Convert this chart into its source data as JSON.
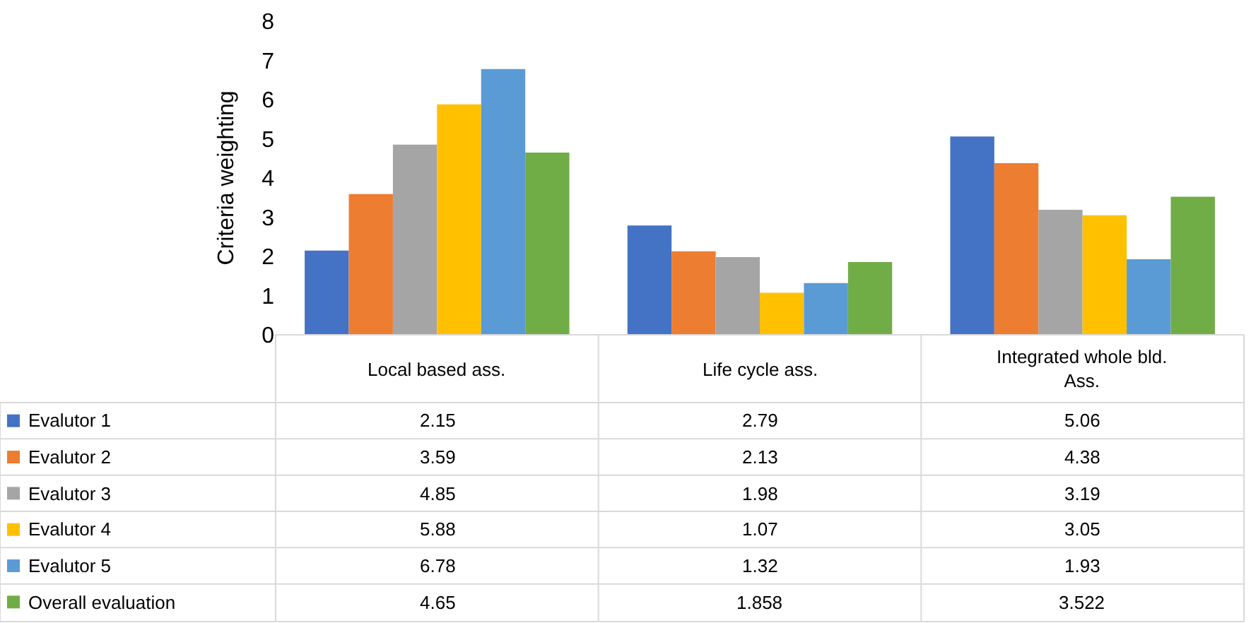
{
  "chart_data": {
    "type": "bar",
    "ylabel": "Criteria weighting",
    "categories": [
      "Local based ass.",
      "Life cycle ass.",
      "Integrated whole bld. Ass."
    ],
    "series": [
      {
        "name": "Evalutor 1",
        "color": "#4472c4",
        "values": [
          2.15,
          2.79,
          5.06
        ]
      },
      {
        "name": "Evalutor 2",
        "color": "#ed7d31",
        "values": [
          3.59,
          2.13,
          4.38
        ]
      },
      {
        "name": "Evalutor 3",
        "color": "#a5a5a5",
        "values": [
          4.85,
          1.98,
          3.19
        ]
      },
      {
        "name": "Evalutor 4",
        "color": "#ffc000",
        "values": [
          5.88,
          1.07,
          3.05
        ]
      },
      {
        "name": "Evalutor 5",
        "color": "#5b9bd5",
        "values": [
          6.78,
          1.32,
          1.93
        ]
      },
      {
        "name": "Overall evaluation",
        "color": "#70ad47",
        "values": [
          4.65,
          1.858,
          3.522
        ]
      }
    ],
    "ylim": [
      0,
      8
    ],
    "yticks": [
      0,
      1,
      2,
      3,
      4,
      5,
      6,
      7,
      8
    ],
    "grid": false,
    "legend": "bottom left",
    "data_labels": true,
    "tick_labels": "y"
  }
}
